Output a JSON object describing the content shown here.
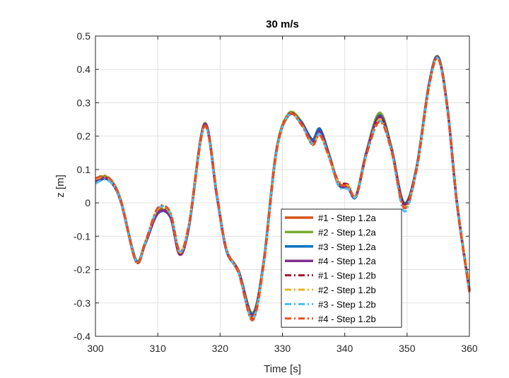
{
  "chart_data": {
    "type": "line",
    "title": "30 m/s",
    "xlabel": "Time [s]",
    "ylabel": "z [m]",
    "xlim": [
      300,
      360
    ],
    "ylim": [
      -0.4,
      0.5
    ],
    "x_ticks": [
      "300",
      "310",
      "320",
      "330",
      "340",
      "350",
      "360"
    ],
    "y_ticks": [
      "-0.4",
      "-0.3",
      "-0.2",
      "-0.1",
      "0",
      "0.1",
      "0.2",
      "0.3",
      "0.4",
      "0.5"
    ],
    "grid": true,
    "legend_position": "bottom-right",
    "x": [
      300,
      302,
      304,
      306.5,
      308,
      310,
      312,
      313.5,
      315,
      317.5,
      319.5,
      321,
      323,
      325.2,
      327,
      329,
      331,
      333,
      334.8,
      336,
      337.5,
      339,
      340.5,
      341.8,
      343.5,
      345.6,
      347.5,
      349.5,
      351.5,
      353.5,
      355,
      356.5,
      358,
      360
    ],
    "series": [
      {
        "name": "#1 - Step 1.2a",
        "color": "#d95319",
        "style": "solid",
        "values": [
          0.073,
          0.075,
          0.01,
          -0.175,
          -0.12,
          -0.03,
          -0.04,
          -0.155,
          -0.07,
          0.235,
          0.02,
          -0.14,
          -0.21,
          -0.345,
          -0.18,
          0.15,
          0.265,
          0.24,
          0.18,
          0.21,
          0.14,
          0.06,
          0.05,
          0.02,
          0.15,
          0.265,
          0.16,
          -0.005,
          0.1,
          0.35,
          0.435,
          0.28,
          0.0,
          -0.265
        ]
      },
      {
        "name": "#2 - Step 1.2a",
        "color": "#77ac30",
        "style": "solid",
        "values": [
          0.07,
          0.076,
          0.012,
          -0.17,
          -0.118,
          -0.028,
          -0.038,
          -0.15,
          -0.068,
          0.238,
          0.022,
          -0.138,
          -0.205,
          -0.33,
          -0.175,
          0.155,
          0.268,
          0.245,
          0.185,
          0.22,
          0.145,
          0.058,
          0.048,
          0.022,
          0.155,
          0.27,
          0.165,
          -0.003,
          0.105,
          0.355,
          0.438,
          0.282,
          0.002,
          -0.26
        ]
      },
      {
        "name": "#3 - Step 1.2a",
        "color": "#0072bd",
        "style": "solid",
        "values": [
          0.06,
          0.07,
          0.008,
          -0.172,
          -0.122,
          -0.032,
          -0.042,
          -0.152,
          -0.072,
          0.233,
          0.018,
          -0.142,
          -0.208,
          -0.335,
          -0.178,
          0.152,
          0.262,
          0.242,
          0.19,
          0.222,
          0.142,
          0.055,
          0.045,
          0.018,
          0.15,
          0.262,
          0.162,
          0.0,
          0.102,
          0.352,
          0.436,
          0.28,
          -0.002,
          -0.262
        ]
      },
      {
        "name": "#4 - Step 1.2a",
        "color": "#7e2f8e",
        "style": "solid",
        "values": [
          0.065,
          0.072,
          0.01,
          -0.174,
          -0.121,
          -0.031,
          -0.041,
          -0.154,
          -0.071,
          0.236,
          0.019,
          -0.141,
          -0.207,
          -0.338,
          -0.179,
          0.151,
          0.264,
          0.241,
          0.183,
          0.215,
          0.141,
          0.057,
          0.047,
          0.019,
          0.152,
          0.26,
          0.161,
          -0.004,
          0.101,
          0.351,
          0.435,
          0.279,
          -0.001,
          -0.264
        ]
      },
      {
        "name": "#1 - Step 1.2b",
        "color": "#a2142f",
        "style": "dashdot",
        "values": [
          0.072,
          0.074,
          0.011,
          -0.176,
          -0.119,
          -0.022,
          -0.035,
          -0.15,
          -0.066,
          0.232,
          0.021,
          -0.139,
          -0.211,
          -0.347,
          -0.182,
          0.149,
          0.266,
          0.238,
          0.175,
          0.205,
          0.138,
          0.065,
          0.055,
          0.021,
          0.148,
          0.255,
          0.158,
          -0.006,
          0.099,
          0.348,
          0.434,
          0.278,
          -0.001,
          -0.266
        ]
      },
      {
        "name": "#2 - Step 1.2b",
        "color": "#edb120",
        "style": "dashdot",
        "values": [
          0.071,
          0.075,
          0.012,
          -0.175,
          -0.118,
          -0.02,
          -0.033,
          -0.148,
          -0.065,
          0.23,
          0.022,
          -0.138,
          -0.21,
          -0.346,
          -0.181,
          0.15,
          0.265,
          0.237,
          0.176,
          0.204,
          0.137,
          0.062,
          0.052,
          0.022,
          0.147,
          0.25,
          0.157,
          -0.012,
          0.098,
          0.347,
          0.433,
          0.277,
          0.0,
          -0.248
        ]
      },
      {
        "name": "#3 - Step 1.2b",
        "color": "#4dbeee",
        "style": "dashdot",
        "values": [
          0.058,
          0.068,
          0.008,
          -0.173,
          -0.12,
          -0.018,
          -0.03,
          -0.145,
          -0.067,
          0.228,
          0.02,
          -0.14,
          -0.212,
          -0.35,
          -0.184,
          0.148,
          0.263,
          0.236,
          0.178,
          0.206,
          0.136,
          0.05,
          0.042,
          0.02,
          0.146,
          0.245,
          0.155,
          -0.025,
          0.097,
          0.346,
          0.432,
          0.276,
          -0.003,
          -0.268
        ]
      },
      {
        "name": "#4 - Step 1.2b",
        "color": "#e8501e",
        "style": "dashdot",
        "values": [
          0.074,
          0.078,
          0.013,
          -0.177,
          -0.117,
          -0.015,
          -0.028,
          -0.143,
          -0.064,
          0.229,
          0.023,
          -0.137,
          -0.213,
          -0.352,
          -0.185,
          0.147,
          0.264,
          0.235,
          0.174,
          0.203,
          0.135,
          0.06,
          0.05,
          0.023,
          0.145,
          0.243,
          0.154,
          -0.015,
          0.096,
          0.345,
          0.431,
          0.275,
          -0.002,
          -0.27
        ]
      }
    ]
  }
}
